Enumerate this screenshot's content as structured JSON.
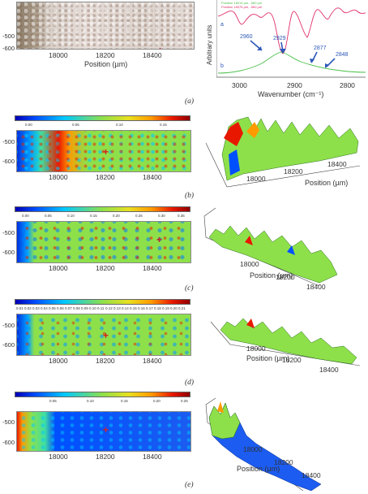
{
  "panel_a": {
    "label": "(a)",
    "map": {
      "xlabel": "Position (µm)",
      "yticks": [
        "-500",
        "-600"
      ],
      "xticks": [
        "18000",
        "18200",
        "18400"
      ]
    },
    "spectrum": {
      "ylabel": "Arbitrary units",
      "xlabel": "Wavenumber (cm⁻¹)",
      "xticks": [
        "3000",
        "2900",
        "2800"
      ],
      "legend": [
        "Position 18014 µm, -560 µm",
        "Position 18375 µm, -560 µm"
      ],
      "curve_labels": [
        "a",
        "b"
      ],
      "peaks": [
        "2960",
        "2929",
        "2877",
        "2848"
      ],
      "colors": {
        "a": "#e0306a",
        "b": "#4cc04c",
        "arrows": "#2d58b8"
      }
    }
  },
  "panels": [
    {
      "label": "(b)",
      "colorbar_ticks": [
        "0.00",
        "0.05",
        "0.10",
        "0.15"
      ],
      "map_yticks": [
        "-500",
        "-600"
      ],
      "map_xticks": [
        "18000",
        "18200",
        "18400"
      ],
      "surface_ticks": [
        "18000",
        "18200",
        "18400"
      ],
      "surface_xlabel": "Position (µm)"
    },
    {
      "label": "(c)",
      "colorbar_ticks": [
        "0.00",
        "0.05",
        "0.10",
        "0.15",
        "0.20",
        "0.25",
        "0.30",
        "0.35"
      ],
      "map_yticks": [
        "-500",
        "-600"
      ],
      "map_xticks": [
        "18000",
        "18200",
        "18400"
      ],
      "surface_ticks": [
        "18000",
        "18200",
        "18400"
      ],
      "surface_xlabel": "Position (µm)"
    },
    {
      "label": "(d)",
      "colorbar_ticks": [
        "0.01",
        "0.02",
        "0.03",
        "0.04",
        "0.05",
        "0.06",
        "0.07",
        "0.08",
        "0.09",
        "0.10",
        "0.11",
        "0.12",
        "0.13",
        "0.14",
        "0.15",
        "0.16",
        "0.17",
        "0.18",
        "0.19",
        "0.20",
        "0.21"
      ],
      "map_yticks": [
        "-500",
        "-600"
      ],
      "map_xticks": [
        "18000",
        "18200",
        "18400"
      ],
      "surface_ticks": [
        "18000",
        "18200",
        "18400"
      ],
      "surface_xlabel": "Position (µm)"
    },
    {
      "label": "(e)",
      "colorbar_ticks": [
        "0.05",
        "0.10",
        "0.15",
        "0.20",
        "0.25"
      ],
      "map_yticks": [
        "-500",
        "-600"
      ],
      "map_xticks": [
        "18000",
        "18200",
        "18400"
      ],
      "surface_ticks": [
        "18000",
        "18200",
        "18400"
      ],
      "surface_xlabel": "Position (µm)"
    }
  ],
  "colors": {
    "jet": [
      "#0000b4",
      "#0050ff",
      "#00c8ff",
      "#40e0a0",
      "#8ee04a",
      "#e8e020",
      "#ff9a00",
      "#e81800",
      "#900000"
    ],
    "marker": "#d32020"
  }
}
